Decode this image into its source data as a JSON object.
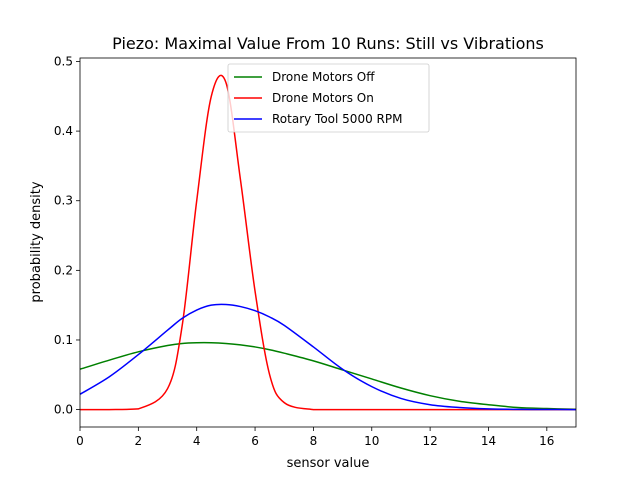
{
  "chart_data": {
    "type": "line",
    "title": "Piezo: Maximal Value From 10 Runs: Still vs Vibrations",
    "xlabel": "sensor value",
    "ylabel": "probability density",
    "xlim": [
      0,
      17
    ],
    "ylim": [
      -0.025,
      0.505
    ],
    "xticks": [
      0,
      2,
      4,
      6,
      8,
      10,
      12,
      14,
      16
    ],
    "yticks": [
      0.0,
      0.1,
      0.2,
      0.3,
      0.4,
      0.5
    ],
    "grid": false,
    "legend_position": "upper-center",
    "x": [
      0,
      1,
      2,
      3,
      3.5,
      4,
      4.5,
      5,
      5.5,
      6,
      6.5,
      7,
      8,
      9,
      10,
      11,
      12,
      13,
      14,
      15,
      16,
      17
    ],
    "series": [
      {
        "name": "Drone Motors Off",
        "color": "#008000",
        "values": [
          0.058,
          0.071,
          0.083,
          0.092,
          0.095,
          0.096,
          0.096,
          0.095,
          0.093,
          0.09,
          0.086,
          0.081,
          0.07,
          0.057,
          0.044,
          0.031,
          0.02,
          0.012,
          0.007,
          0.003,
          0.0015,
          0.0005
        ]
      },
      {
        "name": "Drone Motors On",
        "color": "#ff0000",
        "values": [
          0.0,
          0.0,
          0.001,
          0.03,
          0.12,
          0.3,
          0.45,
          0.47,
          0.33,
          0.17,
          0.05,
          0.01,
          0.0,
          0.0,
          0.0,
          0.0,
          0.0,
          0.0,
          0.0,
          0.0,
          0.0,
          0.0
        ]
      },
      {
        "name": "Rotary Tool 5000 RPM",
        "color": "#0000ff",
        "values": [
          0.022,
          0.047,
          0.079,
          0.114,
          0.131,
          0.143,
          0.15,
          0.151,
          0.148,
          0.142,
          0.133,
          0.121,
          0.09,
          0.058,
          0.033,
          0.016,
          0.007,
          0.003,
          0.001,
          0.0003,
          0.0001,
          0.0
        ]
      }
    ]
  }
}
